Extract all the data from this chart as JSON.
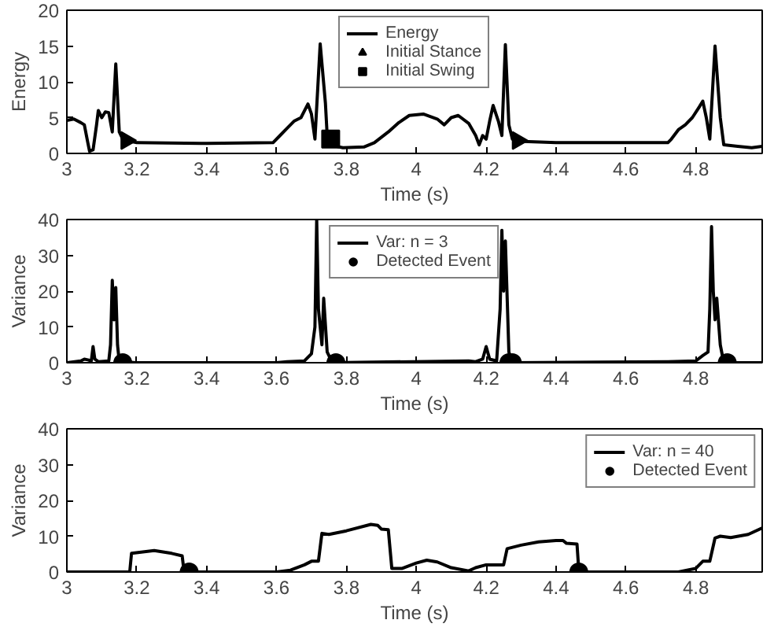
{
  "chart_data": [
    {
      "type": "line",
      "xlabel": "Time (s)",
      "ylabel": "Energy",
      "xlim": [
        3,
        4.99
      ],
      "ylim": [
        0,
        20
      ],
      "xticks": [
        3,
        3.2,
        3.4,
        3.6,
        3.8,
        4,
        4.2,
        4.4,
        4.6,
        4.8
      ],
      "yticks": [
        0,
        5,
        10,
        15,
        20
      ],
      "grid": false,
      "legend": "top",
      "series": [
        {
          "name": "Energy",
          "color": "#000000",
          "x": [
            3.0,
            3.02,
            3.04,
            3.05,
            3.06,
            3.065,
            3.075,
            3.085,
            3.09,
            3.1,
            3.11,
            3.12,
            3.13,
            3.14,
            3.15,
            3.16,
            3.17,
            3.2,
            3.4,
            3.59,
            3.61,
            3.63,
            3.65,
            3.67,
            3.69,
            3.7,
            3.71,
            3.725,
            3.74,
            3.745,
            3.75,
            3.77,
            3.79,
            3.85,
            3.88,
            3.92,
            3.95,
            3.98,
            4.02,
            4.06,
            4.08,
            4.1,
            4.12,
            4.15,
            4.17,
            4.18,
            4.19,
            4.2,
            4.21,
            4.22,
            4.235,
            4.245,
            4.255,
            4.265,
            4.275,
            4.29,
            4.4,
            4.6,
            4.72,
            4.73,
            4.75,
            4.77,
            4.79,
            4.81,
            4.82,
            4.83,
            4.84,
            4.855,
            4.87,
            4.88,
            4.92,
            4.96,
            4.99
          ],
          "values": [
            4.6,
            4.8,
            4.3,
            4.0,
            1.5,
            0.3,
            0.5,
            4,
            6,
            5,
            5.8,
            5.7,
            3.0,
            12.5,
            3,
            2,
            1.8,
            1.5,
            1.4,
            1.5,
            2.5,
            3.5,
            4.5,
            5,
            6.9,
            5.5,
            2,
            15.3,
            7,
            2.5,
            2.0,
            1.0,
            0.8,
            0.9,
            1.5,
            3.0,
            4.3,
            5.3,
            5.5,
            4.8,
            4.0,
            5.0,
            5.3,
            4.2,
            2.5,
            1.2,
            2.5,
            2.0,
            4.5,
            6.7,
            4.5,
            2.5,
            15.2,
            4,
            2,
            1.7,
            1.5,
            1.5,
            1.5,
            2.0,
            3.3,
            4.0,
            5.0,
            6.5,
            7.3,
            5,
            2,
            15,
            5,
            1.2,
            1.0,
            0.8,
            1.0
          ]
        },
        {
          "name": "Initial Stance",
          "type": "scatter",
          "marker": "triangle",
          "color": "#000000",
          "x": [
            3.17,
            4.29
          ],
          "values": [
            1.8,
            1.8
          ]
        },
        {
          "name": "Initial Swing",
          "type": "scatter",
          "marker": "square",
          "color": "#000000",
          "x": [
            3.755
          ],
          "values": [
            2.0
          ]
        }
      ]
    },
    {
      "type": "line",
      "xlabel": "Time (s)",
      "ylabel": "Variance",
      "xlim": [
        3,
        4.99
      ],
      "ylim": [
        0,
        40
      ],
      "xticks": [
        3,
        3.2,
        3.4,
        3.6,
        3.8,
        4,
        4.2,
        4.4,
        4.6,
        4.8
      ],
      "yticks": [
        0,
        10,
        20,
        30,
        40
      ],
      "grid": false,
      "legend": "top",
      "series": [
        {
          "name": "Var: n = 3",
          "color": "#000000",
          "x": [
            3.0,
            3.04,
            3.05,
            3.06,
            3.07,
            3.075,
            3.08,
            3.09,
            3.12,
            3.125,
            3.13,
            3.135,
            3.14,
            3.145,
            3.15,
            3.2,
            3.6,
            3.63,
            3.68,
            3.7,
            3.71,
            3.715,
            3.72,
            3.73,
            3.735,
            3.745,
            3.76,
            4.15,
            4.17,
            4.19,
            4.2,
            4.21,
            4.23,
            4.24,
            4.245,
            4.25,
            4.255,
            4.265,
            4.275,
            4.72,
            4.8,
            4.82,
            4.835,
            4.84,
            4.845,
            4.85,
            4.855,
            4.86,
            4.87,
            4.88,
            4.99
          ],
          "values": [
            0,
            0.5,
            1,
            0.8,
            0.5,
            4.5,
            1,
            0.3,
            0.5,
            5,
            23,
            12,
            21,
            5,
            0.3,
            0,
            0,
            0.3,
            0.5,
            2.5,
            10,
            40,
            15,
            5,
            18,
            3,
            0,
            0.5,
            0.3,
            1,
            4.5,
            1,
            0.5,
            15,
            37,
            20,
            34,
            3,
            0,
            0.3,
            0.5,
            2,
            3,
            15,
            38,
            20,
            12,
            18,
            5,
            0,
            0
          ]
        },
        {
          "name": "Detected Event",
          "type": "scatter",
          "marker": "circle",
          "color": "#000000",
          "x": [
            3.16,
            3.77,
            4.265,
            4.275,
            4.89
          ],
          "values": [
            0,
            0,
            0,
            0,
            0
          ]
        }
      ]
    },
    {
      "type": "line",
      "xlabel": "Time (s)",
      "ylabel": "Variance",
      "xlim": [
        3,
        4.99
      ],
      "ylim": [
        0,
        40
      ],
      "xticks": [
        3,
        3.2,
        3.4,
        3.6,
        3.8,
        4,
        4.2,
        4.4,
        4.6,
        4.8
      ],
      "yticks": [
        0,
        10,
        20,
        30,
        40
      ],
      "grid": false,
      "legend": "top right",
      "series": [
        {
          "name": "Var: n = 40",
          "color": "#000000",
          "x": [
            3.0,
            3.18,
            3.185,
            3.25,
            3.3,
            3.33,
            3.335,
            3.34,
            3.6,
            3.64,
            3.68,
            3.7,
            3.72,
            3.73,
            3.75,
            3.8,
            3.87,
            3.89,
            3.9,
            3.92,
            3.93,
            3.96,
            4.0,
            4.03,
            4.06,
            4.1,
            4.15,
            4.17,
            4.2,
            4.25,
            4.26,
            4.3,
            4.35,
            4.4,
            4.42,
            4.43,
            4.46,
            4.465,
            4.47,
            4.75,
            4.8,
            4.82,
            4.84,
            4.855,
            4.87,
            4.9,
            4.95,
            4.99
          ],
          "values": [
            0,
            0,
            5.2,
            6,
            5.2,
            4.5,
            0.5,
            0,
            0,
            0.5,
            2.0,
            3,
            3,
            10.8,
            10.5,
            11.5,
            13.3,
            13,
            12,
            11.8,
            1,
            1,
            2.5,
            3.3,
            2.8,
            1.2,
            0.3,
            1.2,
            2,
            2,
            6.5,
            7.5,
            8.4,
            8.8,
            8.8,
            8,
            7.8,
            0.5,
            0,
            0,
            1,
            3,
            3,
            9.5,
            10,
            9.6,
            10.5,
            12.3
          ]
        },
        {
          "name": "Detected Event",
          "type": "scatter",
          "marker": "circle",
          "color": "#000000",
          "x": [
            3.35,
            4.465
          ],
          "values": [
            0,
            0
          ]
        }
      ]
    }
  ]
}
